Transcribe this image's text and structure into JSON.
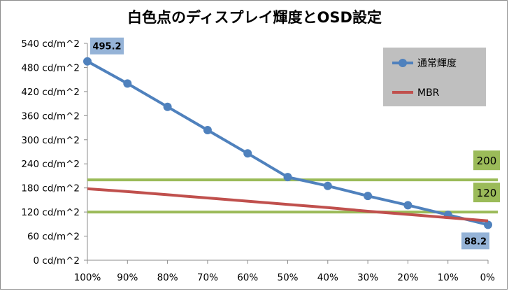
{
  "chart_data": {
    "type": "line",
    "title": "白色点のディスプレイ輝度とOSD設定",
    "categories": [
      "100%",
      "90%",
      "80%",
      "70%",
      "60%",
      "50%",
      "40%",
      "30%",
      "20%",
      "10%",
      "0%"
    ],
    "yticks": [
      "0 cd/m^2",
      "60 cd/m^2",
      "120 cd/m^2",
      "180 cd/m^2",
      "240 cd/m^2",
      "300 cd/m^2",
      "360 cd/m^2",
      "420 cd/m^2",
      "480 cd/m^2",
      "540 cd/m^2"
    ],
    "ylim": [
      0,
      540
    ],
    "xlabel": "",
    "ylabel": "",
    "grid": false,
    "legend_position": "top-right",
    "series": [
      {
        "name": "通常輝度",
        "color": "#4f81bd",
        "marker": "circle",
        "values": [
          495.2,
          440,
          382,
          324,
          266,
          207,
          185,
          160,
          137,
          113,
          88.2
        ]
      },
      {
        "name": "MBR",
        "color": "#c0504d",
        "marker": "none",
        "values": [
          178,
          171,
          163,
          155,
          147,
          139,
          131,
          122,
          114,
          106,
          98
        ]
      }
    ],
    "reference_lines": [
      {
        "value": 200,
        "label": "200",
        "color": "#9bbb59"
      },
      {
        "value": 120,
        "label": "120",
        "color": "#9bbb59"
      }
    ],
    "annotations": [
      {
        "label": "495.2",
        "category": "100%",
        "value": 495.2
      },
      {
        "label": "88.2",
        "category": "0%",
        "value": 88.2
      }
    ]
  }
}
